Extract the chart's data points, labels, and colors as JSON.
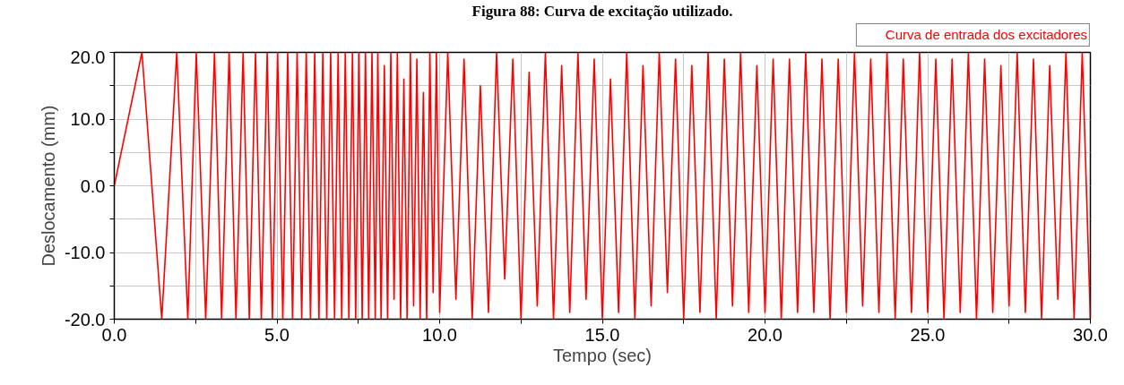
{
  "chart_data": {
    "type": "line",
    "title": "Figura 88: Curva de excitação utilizado.",
    "xlabel": "Tempo (sec)",
    "ylabel": "Deslocamento (mm)",
    "xlim": [
      0,
      30
    ],
    "ylim": [
      -20,
      20
    ],
    "xticks": [
      {
        "value": 0,
        "label": "0.0"
      },
      {
        "value": 2.5,
        "label": null
      },
      {
        "value": 5,
        "label": "5.0"
      },
      {
        "value": 7.5,
        "label": null
      },
      {
        "value": 10,
        "label": "10.0"
      },
      {
        "value": 12.5,
        "label": null
      },
      {
        "value": 15,
        "label": "15.0"
      },
      {
        "value": 17.5,
        "label": null
      },
      {
        "value": 20,
        "label": "20.0"
      },
      {
        "value": 22.5,
        "label": null
      },
      {
        "value": 25,
        "label": "25.0"
      },
      {
        "value": 27.5,
        "label": null
      },
      {
        "value": 30,
        "label": "30.0"
      }
    ],
    "yticks": [
      {
        "value": -20,
        "label": "-20.0"
      },
      {
        "value": -15,
        "label": null
      },
      {
        "value": -10,
        "label": "-10.0"
      },
      {
        "value": -5,
        "label": null
      },
      {
        "value": 0,
        "label": "0.0"
      },
      {
        "value": 5,
        "label": null
      },
      {
        "value": 10,
        "label": "10.0"
      },
      {
        "value": 15,
        "label": null
      },
      {
        "value": 20,
        "label": "20.0"
      }
    ],
    "grid": true,
    "legend": "top right",
    "line_style": "solid",
    "marker": "none",
    "series": [
      {
        "name": "Curva de entrada dos excitadores",
        "color": "#ff0000",
        "x": [
          0,
          0.85,
          1.46,
          1.92,
          2.26,
          2.52,
          2.81,
          3.08,
          3.3,
          3.53,
          3.74,
          3.96,
          4.15,
          4.34,
          4.52,
          4.7,
          4.86,
          5.02,
          5.18,
          5.33,
          5.48,
          5.62,
          5.76,
          5.9,
          6.03,
          6.16,
          6.29,
          6.41,
          6.53,
          6.65,
          6.77,
          6.88,
          6.99,
          7.1,
          7.21,
          7.32,
          7.42,
          7.52,
          7.62,
          7.72,
          7.82,
          7.92,
          8.02,
          8.1,
          8.2,
          8.3,
          8.4,
          8.5,
          8.6,
          8.7,
          8.8,
          8.9,
          9.0,
          9.1,
          9.2,
          9.3,
          9.4,
          9.5,
          9.6,
          9.7,
          9.8,
          9.9,
          10.0,
          10.25,
          10.5,
          10.75,
          11,
          11.25,
          11.5,
          11.75,
          12,
          12.25,
          12.5,
          12.75,
          13,
          13.25,
          13.5,
          13.75,
          14,
          14.25,
          14.5,
          14.75,
          15,
          15.25,
          15.5,
          15.75,
          16,
          16.25,
          16.5,
          16.75,
          17,
          17.25,
          17.5,
          17.75,
          18,
          18.25,
          18.5,
          18.75,
          19,
          19.25,
          19.5,
          19.75,
          20,
          20.25,
          20.5,
          20.75,
          21,
          21.25,
          21.5,
          21.75,
          22,
          22.25,
          22.5,
          22.75,
          23,
          23.25,
          23.5,
          23.75,
          24,
          24.25,
          24.5,
          24.75,
          25,
          25.25,
          25.5,
          25.75,
          26,
          26.25,
          26.5,
          26.75,
          27,
          27.25,
          27.5,
          27.75,
          28,
          28.25,
          28.5,
          28.75,
          29,
          29.25,
          29.5,
          29.75,
          30
        ],
        "values": [
          0,
          20,
          -20,
          20,
          -20,
          20,
          -20,
          20,
          -20,
          20,
          -20,
          20,
          -20,
          20,
          -20,
          20,
          -20,
          20,
          -20,
          20,
          -20,
          20,
          -20,
          20,
          -20,
          20,
          -20,
          20,
          -20,
          20,
          -20,
          20,
          -20,
          20,
          -20,
          20,
          -20,
          20,
          -20,
          20,
          -20,
          20,
          -20,
          20,
          -20,
          18,
          -20,
          20,
          -17,
          20,
          -20,
          16,
          -20,
          20,
          -18,
          19,
          -20,
          14,
          -20,
          20,
          -16,
          20,
          -19,
          20,
          -17,
          19,
          -20,
          15,
          -19,
          20,
          -14,
          19,
          -20,
          17,
          -18,
          20,
          -20,
          18,
          -19,
          20,
          -17,
          19,
          -20,
          16,
          -19,
          20,
          -20,
          18,
          -18,
          20,
          -16,
          19,
          -20,
          18,
          -19,
          20,
          -20,
          19,
          -18,
          20,
          -19,
          18,
          -19,
          19,
          -20,
          19,
          -19,
          20,
          -19,
          19,
          -20,
          19,
          -19,
          20,
          -18,
          19,
          -19,
          20,
          -20,
          19,
          -19,
          20,
          -19,
          19,
          -20,
          19,
          -19,
          20,
          -20,
          19,
          -19,
          18,
          -18,
          20,
          -19,
          19,
          -20,
          18,
          -17,
          20,
          -20,
          20,
          -20
        ]
      }
    ]
  }
}
